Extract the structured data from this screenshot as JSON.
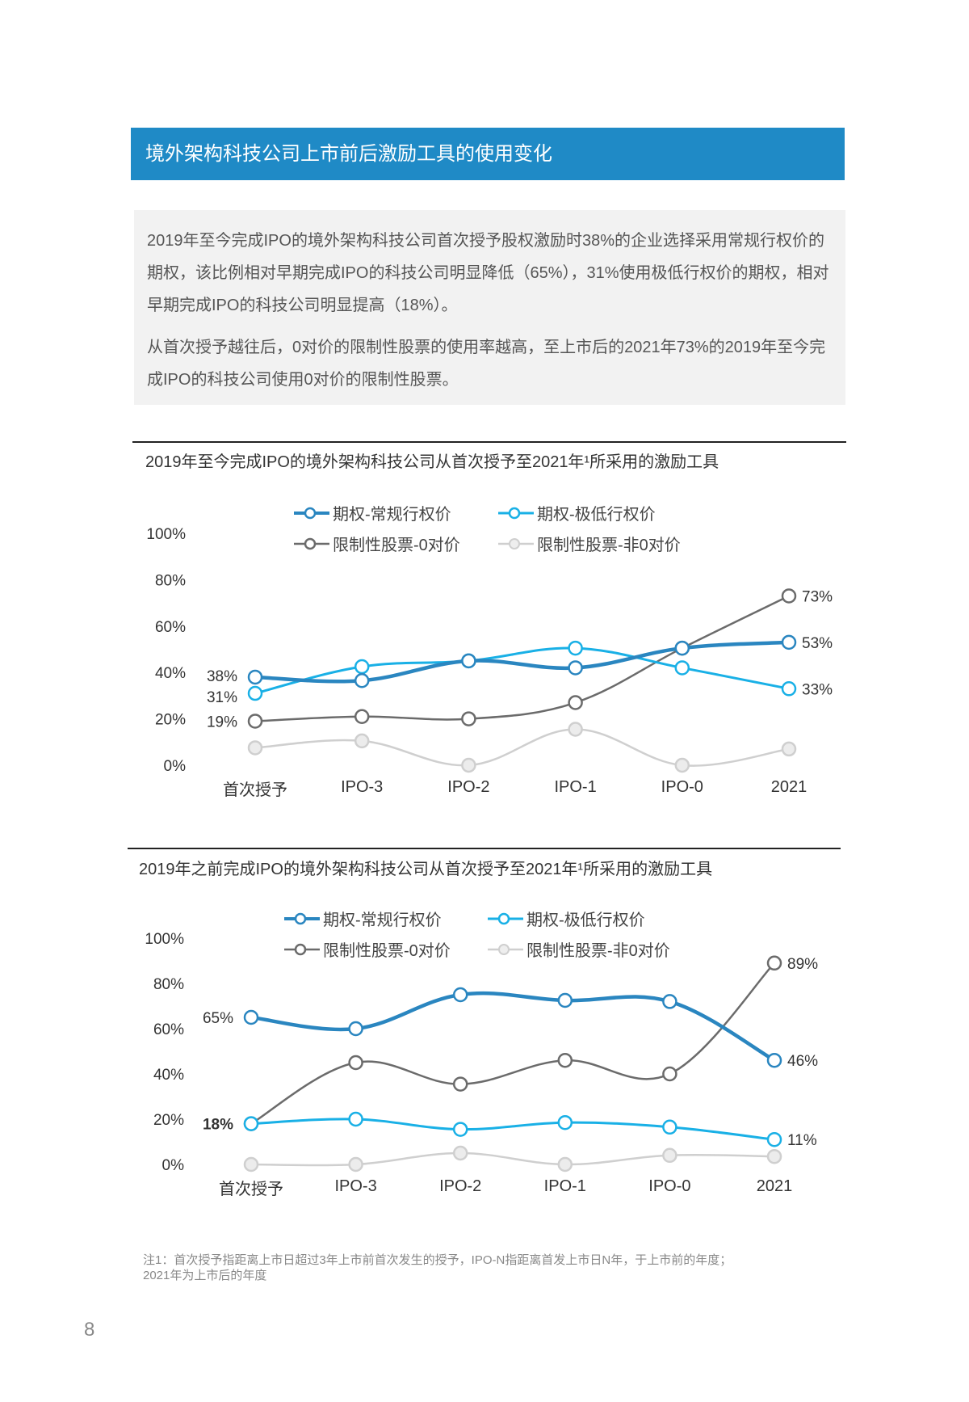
{
  "header": {
    "title": "境外架构科技公司上市前后激励工具的使用变化"
  },
  "summary": {
    "paragraphs": [
      "2019年至今完成IPO的境外架构科技公司首次授予股权激励时38%的企业选择采用常规行权价的期权，该比例相对早期完成IPO的科技公司明显降低（65%），31%使用极低行权价的期权，相对早期完成IPO的科技公司明显提高（18%）。",
      "从首次授予越往后，0对价的限制性股票的使用率越高，至上市后的2021年73%的2019年至今完成IPO的科技公司使用0对价的限制性股票。"
    ]
  },
  "colors": {
    "regular": "#2a86c0",
    "low": "#19b0e6",
    "rs0": "#6b6b6b",
    "non0": "#cfcfcf"
  },
  "chart_data": [
    {
      "type": "line",
      "title": "2019年至今完成IPO的境外架构科技公司从首次授予至2021年¹所采用的激励工具",
      "categories": [
        "首次授予",
        "IPO-3",
        "IPO-2",
        "IPO-1",
        "IPO-0",
        "2021"
      ],
      "yticks": [
        "0%",
        "20%",
        "40%",
        "60%",
        "80%",
        "100%"
      ],
      "ylim": [
        0,
        100
      ],
      "legend_position": "top",
      "series": [
        {
          "key": "regular",
          "name": "期权-常规行权价",
          "values": [
            38,
            36.5,
            45,
            42,
            50.5,
            53
          ]
        },
        {
          "key": "low",
          "name": "期权-极低行权价",
          "values": [
            31,
            42.5,
            45,
            50.5,
            42,
            33
          ]
        },
        {
          "key": "rs0",
          "name": "限制性股票-0对价",
          "values": [
            19,
            21,
            20,
            27,
            50.5,
            73
          ]
        },
        {
          "key": "non0",
          "name": "限制性股票-非0对价",
          "values": [
            7.5,
            10.5,
            0,
            15.5,
            0,
            7
          ]
        }
      ],
      "labels": [
        {
          "series": "regular",
          "index": 0,
          "text": "38%",
          "side": "left"
        },
        {
          "series": "low",
          "index": 0,
          "text": "31%",
          "side": "left"
        },
        {
          "series": "rs0",
          "index": 0,
          "text": "19%",
          "side": "left"
        },
        {
          "series": "rs0",
          "index": 5,
          "text": "73%",
          "side": "right"
        },
        {
          "series": "regular",
          "index": 5,
          "text": "53%",
          "side": "right"
        },
        {
          "series": "low",
          "index": 5,
          "text": "33%",
          "side": "right"
        }
      ]
    },
    {
      "type": "line",
      "title": "2019年之前完成IPO的境外架构科技公司从首次授予至2021年¹所采用的激励工具",
      "categories": [
        "首次授予",
        "IPO-3",
        "IPO-2",
        "IPO-1",
        "IPO-0",
        "2021"
      ],
      "yticks": [
        "0%",
        "20%",
        "40%",
        "60%",
        "80%",
        "100%"
      ],
      "ylim": [
        0,
        100
      ],
      "legend_position": "top",
      "series": [
        {
          "key": "regular",
          "name": "期权-常规行权价",
          "values": [
            65,
            60,
            75,
            72.5,
            72,
            46
          ]
        },
        {
          "key": "low",
          "name": "期权-极低行权价",
          "values": [
            18,
            20,
            15.5,
            18.5,
            16.5,
            11
          ]
        },
        {
          "key": "rs0",
          "name": "限制性股票-0对价",
          "values": [
            18,
            45,
            35.5,
            46,
            40,
            89
          ]
        },
        {
          "key": "non0",
          "name": "限制性股票-非0对价",
          "values": [
            0,
            0,
            5,
            0,
            4,
            3.5
          ]
        }
      ],
      "labels": [
        {
          "series": "regular",
          "index": 0,
          "text": "65%",
          "side": "left"
        },
        {
          "series": "rs0",
          "index": 0,
          "text": "18%",
          "side": "left",
          "bold": true
        },
        {
          "series": "rs0",
          "index": 5,
          "text": "89%",
          "side": "right"
        },
        {
          "series": "regular",
          "index": 5,
          "text": "46%",
          "side": "right"
        },
        {
          "series": "low",
          "index": 5,
          "text": "11%",
          "side": "right"
        }
      ]
    }
  ],
  "note": {
    "lines": [
      "注1：首次授予指距离上市日超过3年上市前首次发生的授予，IPO-N指距离首发上市日N年，于上市前的年度；",
      "2021年为上市后的年度"
    ]
  },
  "page_number": "8"
}
